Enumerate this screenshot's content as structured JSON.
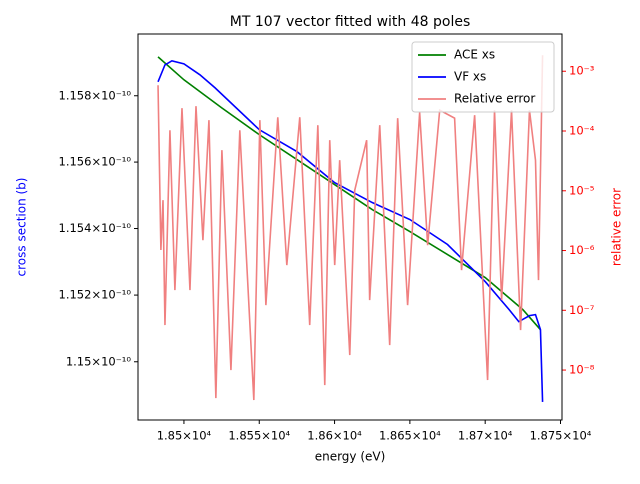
{
  "chart_data": {
    "type": "line",
    "title": "MT 107 vector fitted with 48 poles",
    "xlabel": "energy (eV)",
    "ylabel": "cross section (b)",
    "y2label": "relative error",
    "ylabel_color": "#0000ff",
    "y2label_color": "#ff0000",
    "xlim": [
      18469.5,
      18751
    ],
    "xticks": [
      {
        "value": 18500,
        "label": "1.85×10⁴"
      },
      {
        "value": 18550,
        "label": "1.855×10⁴"
      },
      {
        "value": 18600,
        "label": "1.86×10⁴"
      },
      {
        "value": 18650,
        "label": "1.865×10⁴"
      },
      {
        "value": 18700,
        "label": "1.87×10⁴"
      },
      {
        "value": 18750,
        "label": "1.875×10⁴"
      }
    ],
    "ylim": [
      1.148256e-10,
      1.159865e-10
    ],
    "yscale": "log",
    "yticks": [
      {
        "value": 1.15e-10,
        "label": "1.15×10⁻¹⁰"
      },
      {
        "value": 1.152e-10,
        "label": "1.152×10⁻¹⁰"
      },
      {
        "value": 1.154e-10,
        "label": "1.154×10⁻¹⁰"
      },
      {
        "value": 1.156e-10,
        "label": "1.156×10⁻¹⁰"
      },
      {
        "value": 1.158e-10,
        "label": "1.158×10⁻¹⁰"
      }
    ],
    "y2lim": [
      1.46e-09,
      0.0042
    ],
    "y2scale": "log",
    "y2ticks": [
      {
        "value": 1e-08,
        "label": "10⁻⁸"
      },
      {
        "value": 1e-07,
        "label": "10⁻⁷"
      },
      {
        "value": 1e-06,
        "label": "10⁻⁶"
      },
      {
        "value": 1e-05,
        "label": "10⁻⁵"
      },
      {
        "value": 0.0001,
        "label": "10⁻⁴"
      },
      {
        "value": 0.001,
        "label": "10⁻³"
      }
    ],
    "legend": "upper right",
    "series": [
      {
        "name": "ACE xs",
        "color": "#008000",
        "x": [
          18482.8,
          18500,
          18525,
          18550,
          18575,
          18600,
          18625,
          18650,
          18675,
          18700,
          18725,
          18736.7
        ],
        "values": [
          1.159173e-10,
          1.158481e-10,
          1.157639e-10,
          1.156827e-10,
          1.156075e-10,
          1.155323e-10,
          1.154571e-10,
          1.15391e-10,
          1.153218e-10,
          1.152526e-10,
          1.151564e-10,
          1.150962e-10
        ]
      },
      {
        "name": "VF xs",
        "color": "#0000ff",
        "x": [
          18482.8,
          18487.4,
          18492.0,
          18500,
          18510.6,
          18520.6,
          18550,
          18575,
          18600,
          18625,
          18650,
          18675,
          18700,
          18715.9,
          18722.3,
          18729.4,
          18733.4,
          18736.7,
          18738.1
        ],
        "values": [
          1.158421e-10,
          1.158932e-10,
          1.159053e-10,
          1.158962e-10,
          1.158632e-10,
          1.158241e-10,
          1.156977e-10,
          1.156316e-10,
          1.155383e-10,
          1.154782e-10,
          1.154271e-10,
          1.153519e-10,
          1.152406e-10,
          1.151564e-10,
          1.151203e-10,
          1.151383e-10,
          1.151414e-10,
          1.150962e-10,
          1.148797e-10
        ]
      },
      {
        "name": "Relative error",
        "color": "#f08080",
        "axis": "y2",
        "x": [
          18482.8,
          18484.7,
          18486.1,
          18487.4,
          18490.7,
          18494.0,
          18498.7,
          18504.0,
          18508.0,
          18512.6,
          18516.6,
          18521.2,
          18525.2,
          18531.2,
          18537.1,
          18546.4,
          18550.4,
          18554.4,
          18562.3,
          18568.3,
          18576.9,
          18583.5,
          18588.9,
          18593.5,
          18596.8,
          18600.1,
          18603.4,
          18610.1,
          18613.4,
          18621.3,
          18623.3,
          18630.0,
          18636.6,
          18641.9,
          18648.5,
          18656.5,
          18661.8,
          18669.8,
          18679.7,
          18684.3,
          18693.0,
          18701.6,
          18706.2,
          18710.9,
          18717.5,
          18723.5,
          18729.4,
          18733.4,
          18735.4,
          18738.1
        ],
        "values": [
          0.000583,
          1.02e-06,
          6.97e-06,
          5.66e-08,
          0.000103,
          2.18e-07,
          0.000241,
          2.18e-07,
          0.00026,
          1.49e-06,
          0.000152,
          3.4e-09,
          4.78e-05,
          1e-08,
          0.000103,
          3.15e-09,
          0.000152,
          1.22e-07,
          0.00017,
          5.7e-07,
          0.00017,
          5.66e-08,
          0.000125,
          5.61e-09,
          7.02e-05,
          5.7e-07,
          3.25e-05,
          1.78e-08,
          1.02e-05,
          7.02e-05,
          1.48e-07,
          0.000125,
          2.62e-08,
          0.000164,
          1.22e-07,
          0.000206,
          1.23e-06,
          0.000223,
          0.000164,
          4.7e-07,
          0.000184,
          6.81e-09,
          0.000223,
          1.48e-07,
          0.000223,
          4.67e-08,
          0.000223,
          3.25e-05,
          3.2e-07,
          0.00185
        ]
      }
    ]
  }
}
